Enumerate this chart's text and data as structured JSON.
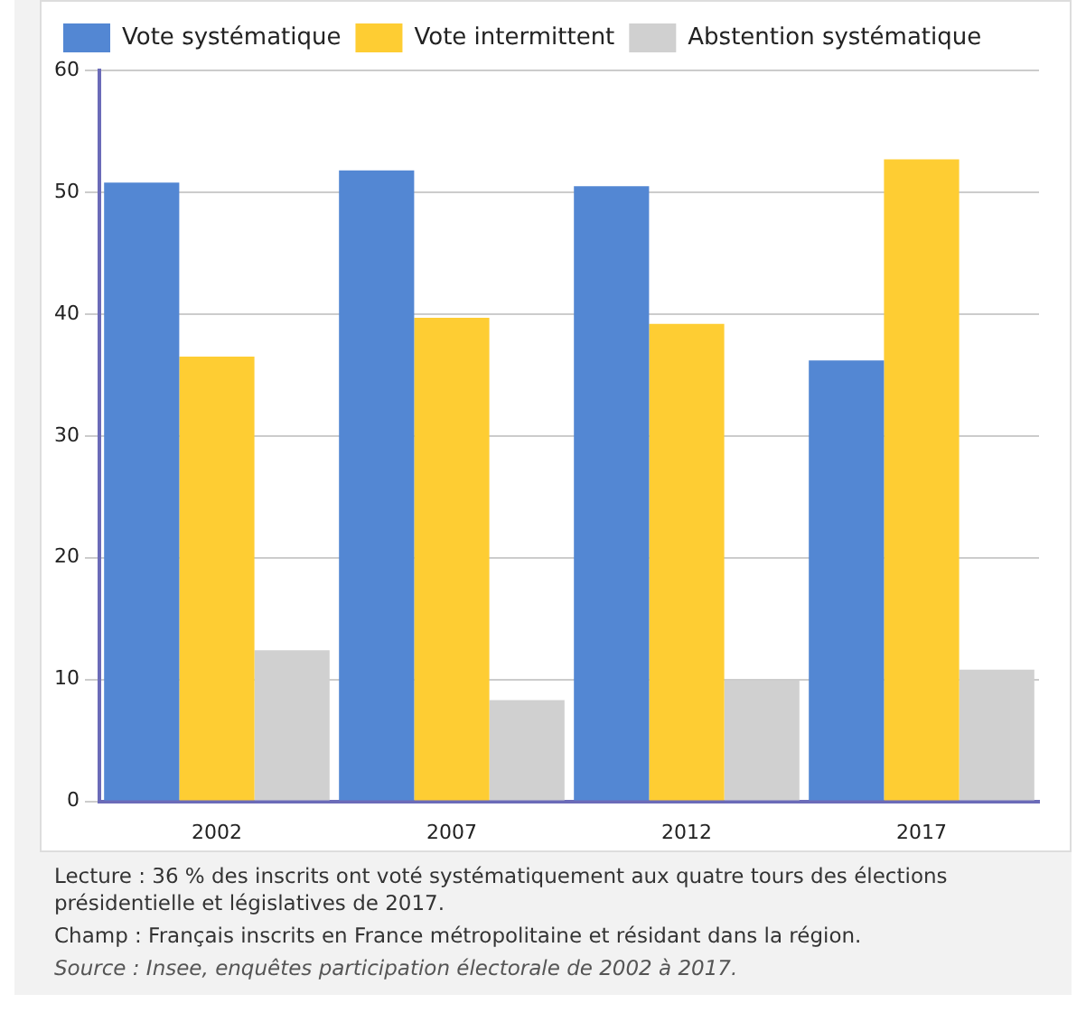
{
  "chart_data": {
    "type": "bar",
    "categories": [
      "2002",
      "2007",
      "2012",
      "2017"
    ],
    "series": [
      {
        "name": "Vote systématique",
        "color": "#5387d3",
        "values": [
          50.8,
          51.8,
          50.5,
          36.2
        ]
      },
      {
        "name": "Vote intermittent",
        "color": "#fecd33",
        "values": [
          36.5,
          39.7,
          39.2,
          52.7
        ]
      },
      {
        "name": "Abstention systématique",
        "color": "#d0d0d0",
        "values": [
          12.4,
          8.3,
          9.9,
          10.8
        ]
      }
    ],
    "ylim": [
      0,
      60
    ],
    "yticks": [
      0,
      10,
      20,
      30,
      40,
      50,
      60
    ],
    "grid": "y",
    "legend": "top left",
    "annotations": [
      "Lecture : 36 % des inscrits ont voté systématiquement aux quatre tours des élections présidentielle et législatives de 2017.",
      "Champ : Français inscrits en France métropolitaine et résidant dans la région.",
      "Source : Insee, enquêtes participation électorale de 2002 à 2017."
    ]
  }
}
